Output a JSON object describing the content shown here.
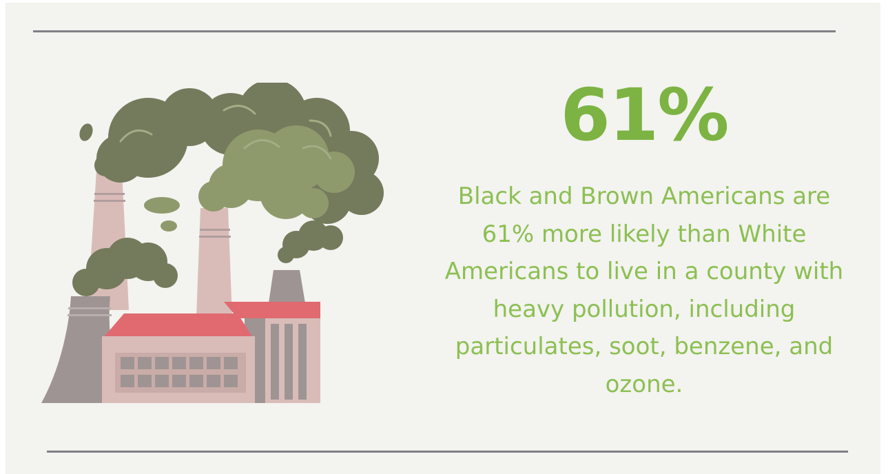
{
  "infographic": {
    "stat": "61%",
    "description": "Black and Brown Americans are 61% more likely than White Americans to live in a county with heavy pollution, including particulates, soot, benzene, and ozone.",
    "illustration_icon": "factory-smoke-icon"
  },
  "colors": {
    "accent_green": "#7cb342",
    "text_green": "#8cbf52",
    "background": "#f3f3ef",
    "rule_gray": "#7f7f86",
    "smoke_dark": "#747a5c",
    "smoke_light": "#8e9a6c",
    "roof_red": "#e06a70",
    "wall_pink": "#d9bcb8",
    "wall_gray": "#9f9494"
  }
}
